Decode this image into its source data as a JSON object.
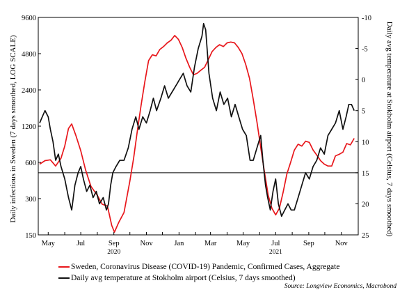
{
  "chart_data": {
    "type": "line",
    "title": "",
    "x_axis": {
      "tick_labels": [
        "May",
        "Jul",
        "Sep",
        "Nov",
        "Jan",
        "Mar",
        "May",
        "Jul",
        "Sep",
        "Nov"
      ],
      "year_labels": [
        "2020",
        "2021"
      ],
      "range": [
        "2020-04-15",
        "2021-11-30"
      ]
    },
    "y_left": {
      "label": "Daily infectious in Sweden (7 days smoothed, LOG SCALE)",
      "scale": "log",
      "ticks": [
        150,
        300,
        600,
        1200,
        2400,
        4800,
        9600
      ],
      "tick_labels": [
        "150",
        "300",
        "600",
        "1200",
        "2400",
        "4800",
        "9600"
      ],
      "range": [
        150,
        9600
      ]
    },
    "y_right": {
      "label": "Daily avg temperature at Stokholm airport (Celsius, 7 days smoothed)",
      "inverted": true,
      "ticks": [
        -10,
        -5,
        0,
        5,
        10,
        15,
        20,
        25
      ],
      "tick_labels": [
        "-10",
        "-5",
        "0",
        "5",
        "10",
        "15",
        "20",
        "25"
      ],
      "range": [
        -10,
        25
      ]
    },
    "reference_line": {
      "axis": "right",
      "value": 15
    },
    "grid": false,
    "legend_position": "bottom",
    "series": [
      {
        "name": "Sweden, Coronavirus Disease (COVID-19) Pandemic, Confirmed Cases, Aggregate",
        "color": "#e8161b",
        "axis": "left",
        "points": [
          [
            "2020-04-15",
            580
          ],
          [
            "2020-04-25",
            620
          ],
          [
            "2020-05-05",
            630
          ],
          [
            "2020-05-15",
            560
          ],
          [
            "2020-05-25",
            650
          ],
          [
            "2020-06-01",
            820
          ],
          [
            "2020-06-08",
            1150
          ],
          [
            "2020-06-14",
            1250
          ],
          [
            "2020-06-22",
            1000
          ],
          [
            "2020-07-01",
            750
          ],
          [
            "2020-07-10",
            520
          ],
          [
            "2020-07-20",
            380
          ],
          [
            "2020-08-01",
            320
          ],
          [
            "2020-08-10",
            270
          ],
          [
            "2020-08-20",
            260
          ],
          [
            "2020-08-28",
            180
          ],
          [
            "2020-09-02",
            158
          ],
          [
            "2020-09-10",
            190
          ],
          [
            "2020-09-20",
            230
          ],
          [
            "2020-10-01",
            420
          ],
          [
            "2020-10-08",
            650
          ],
          [
            "2020-10-15",
            1100
          ],
          [
            "2020-10-22",
            1800
          ],
          [
            "2020-10-29",
            2800
          ],
          [
            "2020-11-05",
            4200
          ],
          [
            "2020-11-12",
            4700
          ],
          [
            "2020-11-19",
            4600
          ],
          [
            "2020-11-26",
            5200
          ],
          [
            "2020-12-03",
            5500
          ],
          [
            "2020-12-10",
            5900
          ],
          [
            "2020-12-17",
            6200
          ],
          [
            "2020-12-24",
            6800
          ],
          [
            "2020-12-31",
            6300
          ],
          [
            "2021-01-07",
            5400
          ],
          [
            "2021-01-14",
            4400
          ],
          [
            "2021-01-21",
            3700
          ],
          [
            "2021-01-28",
            3200
          ],
          [
            "2021-02-04",
            3300
          ],
          [
            "2021-02-11",
            3500
          ],
          [
            "2021-02-18",
            3700
          ],
          [
            "2021-02-25",
            4300
          ],
          [
            "2021-03-04",
            5000
          ],
          [
            "2021-03-11",
            5400
          ],
          [
            "2021-03-18",
            5700
          ],
          [
            "2021-03-25",
            5500
          ],
          [
            "2021-04-01",
            5900
          ],
          [
            "2021-04-08",
            6000
          ],
          [
            "2021-04-15",
            5900
          ],
          [
            "2021-04-22",
            5400
          ],
          [
            "2021-04-29",
            4800
          ],
          [
            "2021-05-06",
            3900
          ],
          [
            "2021-05-13",
            3000
          ],
          [
            "2021-05-20",
            2000
          ],
          [
            "2021-05-27",
            1300
          ],
          [
            "2021-06-03",
            800
          ],
          [
            "2021-06-10",
            500
          ],
          [
            "2021-06-17",
            320
          ],
          [
            "2021-06-24",
            250
          ],
          [
            "2021-07-01",
            220
          ],
          [
            "2021-07-08",
            250
          ],
          [
            "2021-07-15",
            340
          ],
          [
            "2021-07-22",
            480
          ],
          [
            "2021-07-29",
            600
          ],
          [
            "2021-08-05",
            760
          ],
          [
            "2021-08-12",
            850
          ],
          [
            "2021-08-19",
            820
          ],
          [
            "2021-08-26",
            900
          ],
          [
            "2021-09-02",
            880
          ],
          [
            "2021-09-09",
            760
          ],
          [
            "2021-09-16",
            690
          ],
          [
            "2021-09-23",
            620
          ],
          [
            "2021-09-30",
            580
          ],
          [
            "2021-10-07",
            560
          ],
          [
            "2021-10-14",
            560
          ],
          [
            "2021-10-21",
            680
          ],
          [
            "2021-10-28",
            700
          ],
          [
            "2021-11-04",
            730
          ],
          [
            "2021-11-11",
            860
          ],
          [
            "2021-11-18",
            840
          ],
          [
            "2021-11-25",
            950
          ]
        ]
      },
      {
        "name": "Daily avg temperature at Stokholm airport (Celsius, 7 days smoothed)",
        "color": "#111111",
        "axis": "right",
        "points": [
          [
            "2020-04-15",
            7
          ],
          [
            "2020-04-20",
            6
          ],
          [
            "2020-04-25",
            5
          ],
          [
            "2020-05-01",
            6
          ],
          [
            "2020-05-05",
            8
          ],
          [
            "2020-05-10",
            10
          ],
          [
            "2020-05-15",
            13
          ],
          [
            "2020-05-20",
            12
          ],
          [
            "2020-05-25",
            14
          ],
          [
            "2020-06-01",
            16
          ],
          [
            "2020-06-08",
            19
          ],
          [
            "2020-06-14",
            21
          ],
          [
            "2020-06-20",
            17
          ],
          [
            "2020-06-26",
            15
          ],
          [
            "2020-07-01",
            14
          ],
          [
            "2020-07-06",
            16
          ],
          [
            "2020-07-12",
            18
          ],
          [
            "2020-07-18",
            17
          ],
          [
            "2020-07-24",
            19
          ],
          [
            "2020-07-30",
            18
          ],
          [
            "2020-08-05",
            20
          ],
          [
            "2020-08-12",
            19
          ],
          [
            "2020-08-18",
            21
          ],
          [
            "2020-08-22",
            20
          ],
          [
            "2020-08-26",
            17
          ],
          [
            "2020-08-30",
            15
          ],
          [
            "2020-09-05",
            14
          ],
          [
            "2020-09-12",
            13
          ],
          [
            "2020-09-20",
            13
          ],
          [
            "2020-09-28",
            11
          ],
          [
            "2020-10-05",
            8
          ],
          [
            "2020-10-12",
            6
          ],
          [
            "2020-10-18",
            8
          ],
          [
            "2020-10-25",
            6
          ],
          [
            "2020-11-01",
            7
          ],
          [
            "2020-11-08",
            5
          ],
          [
            "2020-11-14",
            3
          ],
          [
            "2020-11-20",
            5
          ],
          [
            "2020-11-28",
            3
          ],
          [
            "2020-12-05",
            1
          ],
          [
            "2020-12-12",
            3
          ],
          [
            "2020-12-19",
            2
          ],
          [
            "2020-12-26",
            1
          ],
          [
            "2021-01-02",
            0
          ],
          [
            "2021-01-09",
            -1
          ],
          [
            "2021-01-16",
            1
          ],
          [
            "2021-01-23",
            2
          ],
          [
            "2021-01-30",
            -2
          ],
          [
            "2021-02-06",
            -5
          ],
          [
            "2021-02-13",
            -7
          ],
          [
            "2021-02-16",
            -9
          ],
          [
            "2021-02-20",
            -8
          ],
          [
            "2021-02-26",
            -1
          ],
          [
            "2021-03-05",
            3
          ],
          [
            "2021-03-12",
            5
          ],
          [
            "2021-03-19",
            2
          ],
          [
            "2021-03-26",
            4
          ],
          [
            "2021-04-02",
            3
          ],
          [
            "2021-04-09",
            6
          ],
          [
            "2021-04-16",
            4
          ],
          [
            "2021-04-23",
            6
          ],
          [
            "2021-04-30",
            8
          ],
          [
            "2021-05-07",
            9
          ],
          [
            "2021-05-14",
            13
          ],
          [
            "2021-05-20",
            13
          ],
          [
            "2021-05-27",
            11
          ],
          [
            "2021-06-03",
            9
          ],
          [
            "2021-06-07",
            13
          ],
          [
            "2021-06-12",
            17
          ],
          [
            "2021-06-16",
            19
          ],
          [
            "2021-06-21",
            21
          ],
          [
            "2021-06-26",
            18
          ],
          [
            "2021-07-01",
            16
          ],
          [
            "2021-07-06",
            20
          ],
          [
            "2021-07-12",
            22
          ],
          [
            "2021-07-18",
            21
          ],
          [
            "2021-07-24",
            20
          ],
          [
            "2021-07-30",
            21
          ],
          [
            "2021-08-05",
            21
          ],
          [
            "2021-08-12",
            19
          ],
          [
            "2021-08-19",
            17
          ],
          [
            "2021-08-26",
            15
          ],
          [
            "2021-09-02",
            16
          ],
          [
            "2021-09-09",
            14
          ],
          [
            "2021-09-16",
            13
          ],
          [
            "2021-09-23",
            11
          ],
          [
            "2021-09-30",
            12
          ],
          [
            "2021-10-07",
            9
          ],
          [
            "2021-10-14",
            8
          ],
          [
            "2021-10-21",
            7
          ],
          [
            "2021-10-28",
            5
          ],
          [
            "2021-11-04",
            8
          ],
          [
            "2021-11-10",
            6
          ],
          [
            "2021-11-15",
            4
          ],
          [
            "2021-11-20",
            4
          ],
          [
            "2021-11-25",
            5
          ]
        ]
      }
    ]
  },
  "source": "Source: Longview Economics, Macrobond"
}
